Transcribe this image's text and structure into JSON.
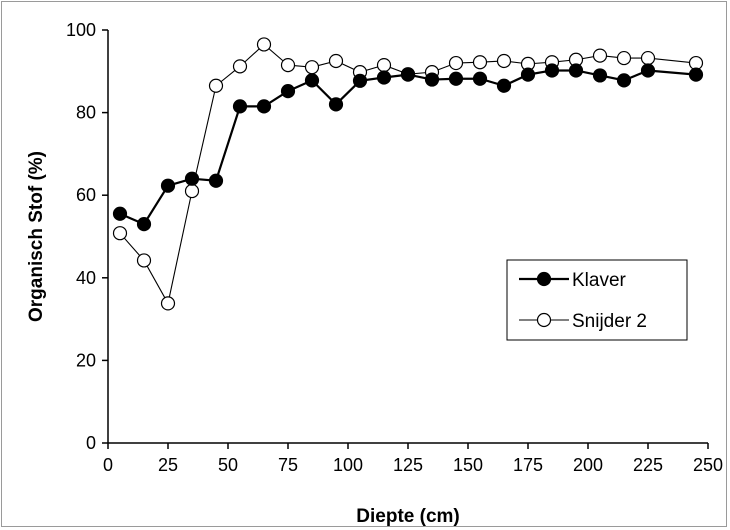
{
  "chart_data": {
    "type": "line",
    "xlabel": "Diepte (cm)",
    "ylabel": "Organisch  Stof (%)",
    "xlim": [
      0,
      250
    ],
    "ylim": [
      0,
      100
    ],
    "xticks": [
      "0",
      "25",
      "50",
      "75",
      "100",
      "125",
      "150",
      "175",
      "200",
      "225",
      "250"
    ],
    "yticks": [
      "0",
      "20",
      "40",
      "60",
      "80",
      "100"
    ],
    "grid": false,
    "legend_position": "lower-right",
    "series": [
      {
        "name": "Klaver",
        "marker": "filled-circle",
        "color": "#000000",
        "x": [
          5,
          15,
          25,
          35,
          45,
          55,
          65,
          75,
          85,
          95,
          105,
          115,
          125,
          135,
          145,
          155,
          165,
          175,
          185,
          195,
          205,
          215,
          225,
          245
        ],
        "y": [
          55.5,
          53,
          62.3,
          64,
          63.5,
          81.5,
          81.5,
          85.2,
          87.8,
          82,
          87.7,
          88.5,
          89.2,
          88,
          88.2,
          88.2,
          86.5,
          89.2,
          90.2,
          90.2,
          89,
          87.8,
          90.2,
          89.2
        ]
      },
      {
        "name": "Snijder 2",
        "marker": "open-circle",
        "color": "#000000",
        "x": [
          5,
          15,
          25,
          35,
          45,
          55,
          65,
          75,
          85,
          95,
          105,
          115,
          125,
          135,
          145,
          155,
          165,
          175,
          185,
          195,
          205,
          215,
          225,
          245
        ],
        "y": [
          50.8,
          44.2,
          33.8,
          61,
          86.5,
          91.2,
          96.5,
          91.5,
          91,
          92.5,
          89.8,
          91.5,
          89.3,
          89.8,
          92,
          92.2,
          92.5,
          91.8,
          92.2,
          92.8,
          93.8,
          93.2,
          93.2,
          92
        ]
      }
    ]
  }
}
